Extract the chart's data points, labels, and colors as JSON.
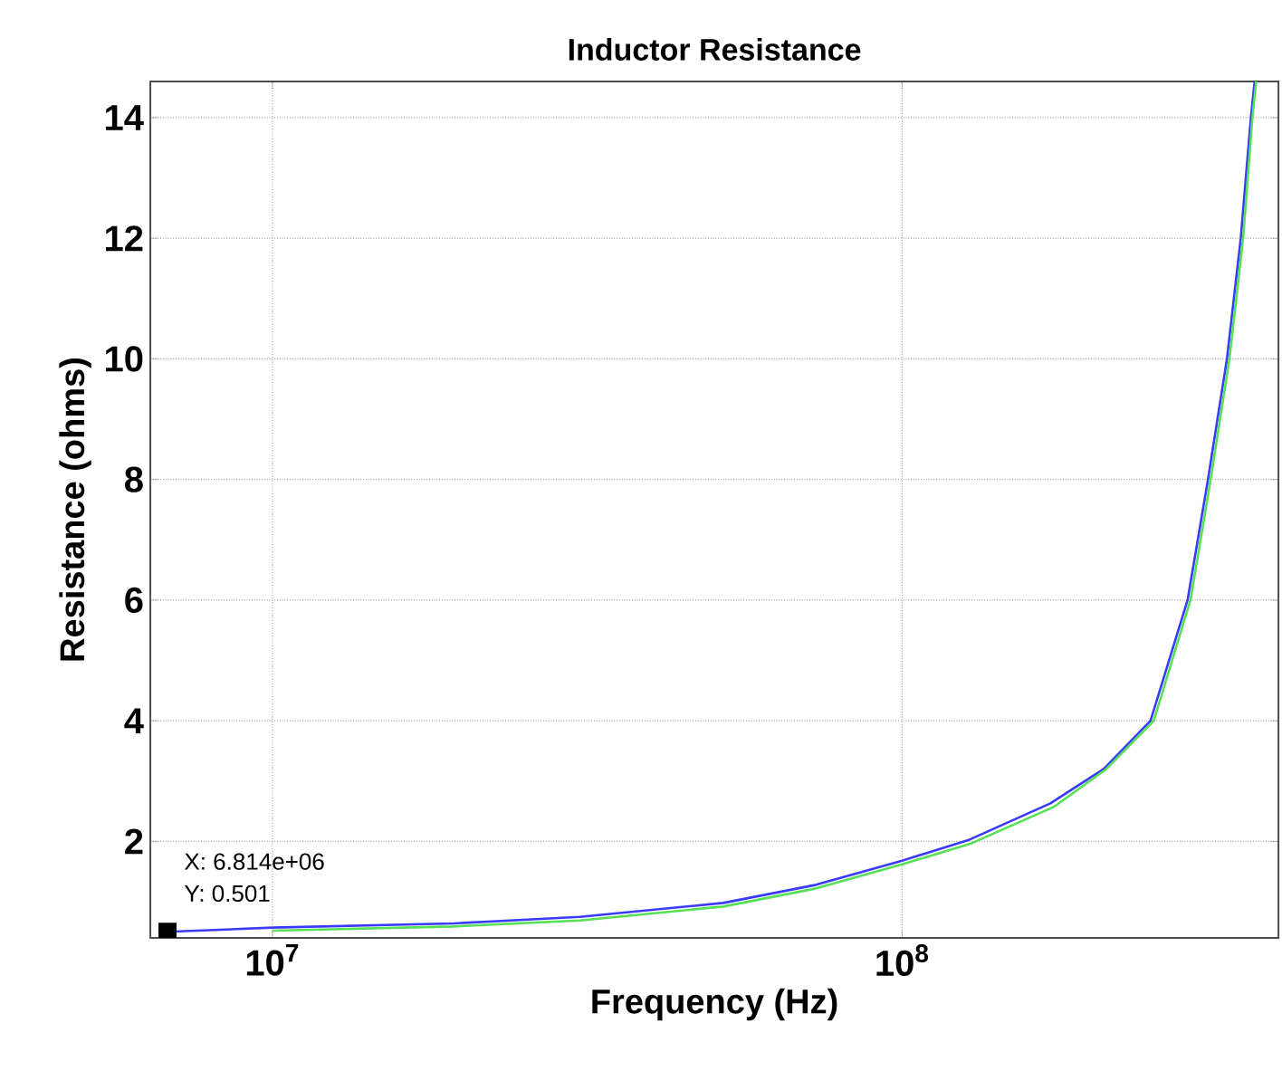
{
  "chart_data": {
    "type": "line",
    "title": "Inductor Resistance",
    "xlabel": "Frequency (Hz)",
    "ylabel": "Resistance (ohms)",
    "log": "x",
    "grid": true,
    "xlim": [
      6400000,
      396000000
    ],
    "ylim": [
      0.4,
      14.6
    ],
    "xticks": [
      {
        "value": 10000000,
        "label": "10$^{7}$"
      },
      {
        "value": 100000000,
        "label": "10$^{8}$"
      }
    ],
    "yticks": [
      2,
      4,
      6,
      8,
      10,
      12,
      14
    ],
    "series": [
      {
        "color": "#3a3aff",
        "x": [
          6814000,
          10000000,
          19400000,
          30800000,
          52000000,
          73000000,
          100000000,
          128000000,
          172000000,
          209000000,
          248000000,
          284000000,
          306000000,
          328000000,
          345000000,
          358000000,
          363000000
        ],
        "values": [
          0.501,
          0.57,
          0.64,
          0.75,
          0.98,
          1.28,
          1.68,
          2.03,
          2.63,
          3.2,
          4.0,
          6.0,
          8.0,
          10.0,
          12.0,
          14.0,
          14.6
        ]
      },
      {
        "color": "#55e055",
        "x": [
          10000000,
          19400000,
          30800000,
          52000000,
          73000000,
          100000000,
          129000000,
          174000000,
          211000000,
          251000000,
          287000000,
          309000000,
          331000000,
          348000000,
          360000000,
          365000000
        ],
        "values": [
          0.52,
          0.59,
          0.69,
          0.92,
          1.22,
          1.62,
          1.97,
          2.57,
          3.2,
          4.0,
          6.0,
          8.0,
          10.0,
          12.0,
          14.0,
          14.6
        ]
      }
    ],
    "annotations": [
      "X: 6.814e+06",
      "Y: 0.501"
    ]
  }
}
